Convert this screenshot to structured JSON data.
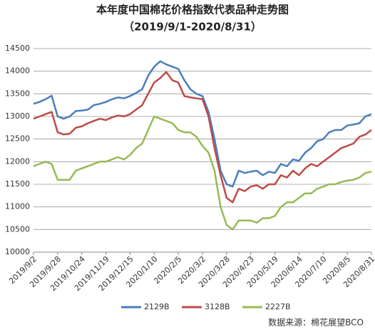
{
  "chart_data": {
    "type": "line",
    "title": "本年度中国棉花价格指数代表品种走势图",
    "subtitle": "（2019/9/1-2020/8/31）",
    "source": "数据来源：棉花展望BCO",
    "categories": [
      "2019/9/2",
      null,
      null,
      null,
      "2019/9/28",
      null,
      null,
      null,
      "2019/10/24",
      null,
      null,
      null,
      "2019/11/19",
      null,
      null,
      null,
      "2019/12/15",
      null,
      null,
      null,
      "2020/1/10",
      null,
      null,
      null,
      "2020/2/5",
      null,
      null,
      null,
      "2020/3/2",
      null,
      null,
      null,
      "2020/3/28",
      null,
      null,
      null,
      "2020/4/23",
      null,
      null,
      null,
      "2020/5/19",
      null,
      null,
      null,
      "2020/6/14",
      null,
      null,
      null,
      "2020/7/10",
      null,
      null,
      null,
      "2020/8/5",
      null,
      null,
      null,
      "2020/8/31"
    ],
    "series": [
      {
        "name": "2129B",
        "color": "#4a7ebb",
        "values": [
          13280,
          13320,
          13380,
          13460,
          13000,
          12950,
          13000,
          13120,
          13130,
          13150,
          13250,
          13280,
          13320,
          13380,
          13420,
          13400,
          13450,
          13520,
          13600,
          13900,
          14100,
          14220,
          14150,
          14100,
          14050,
          13800,
          13600,
          13500,
          13450,
          13100,
          12500,
          11800,
          11500,
          11450,
          11800,
          11750,
          11780,
          11800,
          11700,
          11780,
          11750,
          11950,
          11900,
          12050,
          12020,
          12200,
          12300,
          12450,
          12500,
          12650,
          12700,
          12700,
          12800,
          12820,
          12850,
          13000,
          13050
        ]
      },
      {
        "name": "3128B",
        "color": "#be4b48",
        "values": [
          12950,
          13000,
          13050,
          13100,
          12650,
          12600,
          12620,
          12750,
          12780,
          12850,
          12900,
          12950,
          12920,
          12980,
          13020,
          13000,
          13050,
          13150,
          13250,
          13500,
          13750,
          13850,
          13980,
          13800,
          13750,
          13450,
          13420,
          13400,
          13380,
          13000,
          12300,
          11700,
          11200,
          11100,
          11400,
          11350,
          11450,
          11480,
          11400,
          11500,
          11500,
          11700,
          11650,
          11800,
          11700,
          11850,
          11950,
          11900,
          12000,
          12100,
          12200,
          12300,
          12350,
          12400,
          12550,
          12600,
          12700
        ]
      },
      {
        "name": "2227B",
        "color": "#98b954",
        "values": [
          11900,
          11950,
          12000,
          11950,
          11600,
          11600,
          11600,
          11800,
          11850,
          11900,
          11950,
          12000,
          12000,
          12050,
          12100,
          12050,
          12150,
          12300,
          12400,
          12700,
          13000,
          12950,
          12900,
          12850,
          12700,
          12650,
          12650,
          12550,
          12350,
          12200,
          11800,
          11000,
          10600,
          10500,
          10700,
          10700,
          10700,
          10650,
          10750,
          10750,
          10800,
          11000,
          11100,
          11100,
          11200,
          11300,
          11300,
          11400,
          11450,
          11500,
          11500,
          11550,
          11580,
          11600,
          11650,
          11750,
          11780
        ]
      }
    ],
    "ylim": [
      10000,
      14500
    ],
    "yticks": [
      10000,
      10500,
      11000,
      11500,
      12000,
      12500,
      13000,
      13500,
      14000,
      14500
    ],
    "grid": true
  }
}
